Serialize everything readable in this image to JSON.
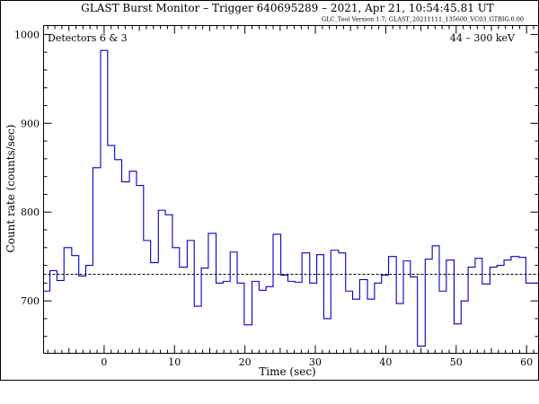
{
  "chart_data": {
    "type": "line",
    "title": "GLAST Burst Monitor  –  Trigger 640695289  –  2021, Apr 21, 10:54:45.81 UT",
    "subtitle": "GLC_Tool Version 1.7; GLAST_20211111_135600_VC03_GTBIG.0.00",
    "panel_label_left": "Detectors 6 & 3",
    "panel_label_right": "44 – 300 keV",
    "xlabel": "Time (sec)",
    "ylabel": "Count rate (counts/sec)",
    "xlim": [
      -8.6,
      61.7
    ],
    "ylim": [
      641,
      1010
    ],
    "xticks": [
      0,
      10,
      20,
      30,
      40,
      50,
      60
    ],
    "yticks": [
      700,
      800,
      900,
      1000
    ],
    "background_level": 730,
    "series": [
      {
        "color": "#0000c8",
        "bin_width": 1.024,
        "bin_edges": [
          -8.6,
          -7.7,
          -6.7,
          -5.7,
          -4.6,
          -3.6,
          -2.6,
          -1.6,
          -0.5,
          0.5,
          1.5,
          2.5,
          3.6,
          4.6,
          5.6,
          6.6,
          7.7,
          8.7,
          9.7,
          10.7,
          11.8,
          12.8,
          13.8,
          14.8,
          15.9,
          16.9,
          17.9,
          18.9,
          19.9,
          21.0,
          22.0,
          23.0,
          24.0,
          25.1,
          26.1,
          27.1,
          28.1,
          29.2,
          30.2,
          31.2,
          32.2,
          33.3,
          34.3,
          35.3,
          36.3,
          37.4,
          38.4,
          39.4,
          40.4,
          41.5,
          42.5,
          43.5,
          44.5,
          45.6,
          46.6,
          47.6,
          48.6,
          49.7,
          50.7,
          51.7,
          52.7,
          53.7,
          54.8,
          55.8,
          56.8,
          57.8,
          58.9,
          59.9,
          60.9,
          61.7
        ],
        "values": [
          711,
          734,
          723,
          760,
          751,
          728,
          740,
          850,
          982,
          875,
          859,
          834,
          846,
          830,
          768,
          743,
          802,
          797,
          760,
          738,
          768,
          694,
          737,
          776,
          720,
          722,
          755,
          720,
          673,
          722,
          712,
          716,
          775,
          729,
          722,
          721,
          754,
          720,
          752,
          680,
          757,
          754,
          711,
          702,
          724,
          702,
          720,
          729,
          750,
          697,
          745,
          727,
          649,
          747,
          762,
          711,
          746,
          674,
          700,
          738,
          748,
          719,
          738,
          740,
          746,
          750,
          749,
          720,
          720
        ]
      }
    ]
  }
}
